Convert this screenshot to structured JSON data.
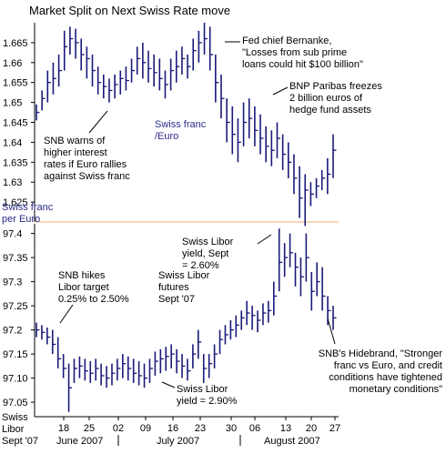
{
  "chart_data": [
    {
      "type": "ohlc",
      "title": "Market Split on Next Swiss Rate move",
      "ylabel_lines": [
        "Swiss franc",
        "per Euro"
      ],
      "ylim": [
        1.62,
        1.67
      ],
      "yticks": [
        1.625,
        1.63,
        1.635,
        1.64,
        1.645,
        1.65,
        1.655,
        1.66,
        1.665
      ],
      "ytick_labels": [
        "1.625",
        "1.63",
        "1.635",
        "1.64",
        "1.645",
        "1.65",
        "1.655",
        "1.66",
        "1.665"
      ],
      "series_label_lines": [
        "Swiss franc",
        "/Euro"
      ],
      "bars": [
        {
          "h": 1.6495,
          "l": 1.6455,
          "c": 1.6475
        },
        {
          "h": 1.653,
          "l": 1.648,
          "c": 1.651
        },
        {
          "h": 1.658,
          "l": 1.65,
          "c": 1.655
        },
        {
          "h": 1.66,
          "l": 1.652,
          "c": 1.656
        },
        {
          "h": 1.662,
          "l": 1.654,
          "c": 1.658
        },
        {
          "h": 1.668,
          "l": 1.658,
          "c": 1.664
        },
        {
          "h": 1.669,
          "l": 1.662,
          "c": 1.666
        },
        {
          "h": 1.6685,
          "l": 1.661,
          "c": 1.665
        },
        {
          "h": 1.666,
          "l": 1.658,
          "c": 1.662
        },
        {
          "h": 1.664,
          "l": 1.656,
          "c": 1.661
        },
        {
          "h": 1.662,
          "l": 1.654,
          "c": 1.658
        },
        {
          "h": 1.659,
          "l": 1.652,
          "c": 1.655
        },
        {
          "h": 1.657,
          "l": 1.651,
          "c": 1.654
        },
        {
          "h": 1.656,
          "l": 1.65,
          "c": 1.653
        },
        {
          "h": 1.657,
          "l": 1.651,
          "c": 1.6545
        },
        {
          "h": 1.658,
          "l": 1.652,
          "c": 1.656
        },
        {
          "h": 1.659,
          "l": 1.653,
          "c": 1.6555
        },
        {
          "h": 1.661,
          "l": 1.655,
          "c": 1.658
        },
        {
          "h": 1.664,
          "l": 1.657,
          "c": 1.661
        },
        {
          "h": 1.665,
          "l": 1.656,
          "c": 1.66
        },
        {
          "h": 1.663,
          "l": 1.655,
          "c": 1.6585
        },
        {
          "h": 1.662,
          "l": 1.654,
          "c": 1.6575
        },
        {
          "h": 1.661,
          "l": 1.653,
          "c": 1.656
        },
        {
          "h": 1.658,
          "l": 1.651,
          "c": 1.6545
        },
        {
          "h": 1.661,
          "l": 1.653,
          "c": 1.658
        },
        {
          "h": 1.663,
          "l": 1.655,
          "c": 1.659
        },
        {
          "h": 1.664,
          "l": 1.657,
          "c": 1.661
        },
        {
          "h": 1.662,
          "l": 1.656,
          "c": 1.659
        },
        {
          "h": 1.666,
          "l": 1.658,
          "c": 1.663
        },
        {
          "h": 1.668,
          "l": 1.66,
          "c": 1.665
        },
        {
          "h": 1.67,
          "l": 1.662,
          "c": 1.666
        },
        {
          "h": 1.669,
          "l": 1.658,
          "c": 1.662
        },
        {
          "h": 1.662,
          "l": 1.65,
          "c": 1.655
        },
        {
          "h": 1.657,
          "l": 1.646,
          "c": 1.651
        },
        {
          "h": 1.651,
          "l": 1.64,
          "c": 1.645
        },
        {
          "h": 1.649,
          "l": 1.637,
          "c": 1.642
        },
        {
          "h": 1.646,
          "l": 1.635,
          "c": 1.64
        },
        {
          "h": 1.65,
          "l": 1.639,
          "c": 1.645
        },
        {
          "h": 1.651,
          "l": 1.641,
          "c": 1.646
        },
        {
          "h": 1.649,
          "l": 1.639,
          "c": 1.643
        },
        {
          "h": 1.647,
          "l": 1.637,
          "c": 1.641
        },
        {
          "h": 1.644,
          "l": 1.635,
          "c": 1.639
        },
        {
          "h": 1.643,
          "l": 1.634,
          "c": 1.638
        },
        {
          "h": 1.645,
          "l": 1.636,
          "c": 1.641
        },
        {
          "h": 1.642,
          "l": 1.633,
          "c": 1.637
        },
        {
          "h": 1.64,
          "l": 1.631,
          "c": 1.635
        },
        {
          "h": 1.637,
          "l": 1.627,
          "c": 1.631
        },
        {
          "h": 1.634,
          "l": 1.621,
          "c": 1.626
        },
        {
          "h": 1.632,
          "l": 1.619,
          "c": 1.628
        },
        {
          "h": 1.63,
          "l": 1.624,
          "c": 1.627
        },
        {
          "h": 1.631,
          "l": 1.626,
          "c": 1.629
        },
        {
          "h": 1.633,
          "l": 1.628,
          "c": 1.631
        },
        {
          "h": 1.636,
          "l": 1.627,
          "c": 1.632
        },
        {
          "h": 1.642,
          "l": 1.631,
          "c": 1.638
        }
      ],
      "annotations": [
        {
          "id": "bernanke",
          "lines": [
            "Fed chief Bernanke,",
            "\"Losses from sub prime",
            "loans could hit $100 billion\""
          ]
        },
        {
          "id": "bnp",
          "lines": [
            "BNP Paribas freezes",
            "2 billion euros of",
            "hedge fund assets"
          ]
        },
        {
          "id": "snb-warns",
          "lines": [
            "SNB warns of",
            "higher interest",
            "rates if Euro rallies",
            "against Swiss franc"
          ]
        }
      ]
    },
    {
      "type": "ohlc",
      "ylim": [
        97.02,
        97.42
      ],
      "yticks": [
        97.05,
        97.1,
        97.15,
        97.2,
        97.25,
        97.3,
        97.35,
        97.4
      ],
      "ytick_labels": [
        "97.05",
        "97.10",
        "97.15",
        "97.2",
        "97.25",
        "97.3",
        "97.35",
        "97.4"
      ],
      "xlabel_lines": [
        "Swiss",
        "Libor",
        "Sept '07"
      ],
      "day_ticks": [
        "18",
        "25",
        "02",
        "09",
        "16",
        "23",
        "30",
        "06",
        "13",
        "20",
        "27"
      ],
      "month_labels": [
        "June 2007",
        "July 2007",
        "August 2007"
      ],
      "series_label_lines": [
        "Swiss Libor",
        "futures",
        "Sept '07"
      ],
      "bars": [
        {
          "h": 97.215,
          "l": 97.185,
          "c": 97.2
        },
        {
          "h": 97.21,
          "l": 97.18,
          "c": 97.195
        },
        {
          "h": 97.205,
          "l": 97.17,
          "c": 97.185
        },
        {
          "h": 97.2,
          "l": 97.15,
          "c": 97.17
        },
        {
          "h": 97.185,
          "l": 97.12,
          "c": 97.14
        },
        {
          "h": 97.15,
          "l": 97.1,
          "c": 97.12
        },
        {
          "h": 97.13,
          "l": 97.03,
          "c": 97.08
        },
        {
          "h": 97.14,
          "l": 97.09,
          "c": 97.12
        },
        {
          "h": 97.145,
          "l": 97.1,
          "c": 97.125
        },
        {
          "h": 97.14,
          "l": 97.095,
          "c": 97.115
        },
        {
          "h": 97.135,
          "l": 97.09,
          "c": 97.11
        },
        {
          "h": 97.14,
          "l": 97.095,
          "c": 97.12
        },
        {
          "h": 97.13,
          "l": 97.085,
          "c": 97.105
        },
        {
          "h": 97.125,
          "l": 97.08,
          "c": 97.1
        },
        {
          "h": 97.13,
          "l": 97.085,
          "c": 97.11
        },
        {
          "h": 97.14,
          "l": 97.095,
          "c": 97.12
        },
        {
          "h": 97.15,
          "l": 97.1,
          "c": 97.13
        },
        {
          "h": 97.145,
          "l": 97.095,
          "c": 97.12
        },
        {
          "h": 97.14,
          "l": 97.09,
          "c": 97.11
        },
        {
          "h": 97.135,
          "l": 97.085,
          "c": 97.105
        },
        {
          "h": 97.13,
          "l": 97.08,
          "c": 97.1
        },
        {
          "h": 97.14,
          "l": 97.09,
          "c": 97.12
        },
        {
          "h": 97.155,
          "l": 97.105,
          "c": 97.135
        },
        {
          "h": 97.16,
          "l": 97.11,
          "c": 97.14
        },
        {
          "h": 97.165,
          "l": 97.115,
          "c": 97.145
        },
        {
          "h": 97.17,
          "l": 97.12,
          "c": 97.15
        },
        {
          "h": 97.16,
          "l": 97.11,
          "c": 97.135
        },
        {
          "h": 97.15,
          "l": 97.1,
          "c": 97.125
        },
        {
          "h": 97.14,
          "l": 97.095,
          "c": 97.115
        },
        {
          "h": 97.17,
          "l": 97.12,
          "c": 97.15
        },
        {
          "h": 97.2,
          "l": 97.14,
          "c": 97.175
        },
        {
          "h": 97.15,
          "l": 97.09,
          "c": 97.12
        },
        {
          "h": 97.15,
          "l": 97.1,
          "c": 97.13
        },
        {
          "h": 97.17,
          "l": 97.12,
          "c": 97.15
        },
        {
          "h": 97.2,
          "l": 97.15,
          "c": 97.18
        },
        {
          "h": 97.21,
          "l": 97.17,
          "c": 97.19
        },
        {
          "h": 97.22,
          "l": 97.18,
          "c": 97.2
        },
        {
          "h": 97.23,
          "l": 97.185,
          "c": 97.21
        },
        {
          "h": 97.24,
          "l": 97.2,
          "c": 97.225
        },
        {
          "h": 97.26,
          "l": 97.21,
          "c": 97.235
        },
        {
          "h": 97.25,
          "l": 97.2,
          "c": 97.23
        },
        {
          "h": 97.24,
          "l": 97.195,
          "c": 97.22
        },
        {
          "h": 97.255,
          "l": 97.21,
          "c": 97.235
        },
        {
          "h": 97.26,
          "l": 97.215,
          "c": 97.24
        },
        {
          "h": 97.3,
          "l": 97.23,
          "c": 97.27
        },
        {
          "h": 97.41,
          "l": 97.28,
          "c": 97.34
        },
        {
          "h": 97.38,
          "l": 97.31,
          "c": 97.35
        },
        {
          "h": 97.4,
          "l": 97.33,
          "c": 97.36
        },
        {
          "h": 97.36,
          "l": 97.29,
          "c": 97.33
        },
        {
          "h": 97.35,
          "l": 97.27,
          "c": 97.31
        },
        {
          "h": 97.4,
          "l": 97.3,
          "c": 97.35
        },
        {
          "h": 97.32,
          "l": 97.24,
          "c": 97.28
        },
        {
          "h": 97.34,
          "l": 97.27,
          "c": 97.3
        },
        {
          "h": 97.33,
          "l": 97.24,
          "c": 97.27
        },
        {
          "h": 97.27,
          "l": 97.21,
          "c": 97.24
        },
        {
          "h": 97.25,
          "l": 97.2,
          "c": 97.225
        }
      ],
      "annotations": [
        {
          "id": "swiss-libor-260",
          "lines": [
            "Swiss Libor",
            "yield, Sept",
            "= 2.60%"
          ]
        },
        {
          "id": "snb-hikes",
          "lines": [
            "SNB hikes",
            "Libor target",
            "0.25% to 2.50%"
          ]
        },
        {
          "id": "swiss-libor-290",
          "lines": [
            "Swiss Libor",
            "yield = 2.90%"
          ]
        },
        {
          "id": "hildebrand",
          "lines": [
            "SNB's Hidebrand, \"Stronger",
            "franc vs Euro, and credit",
            "conditions have tightened",
            "monetary conditions\""
          ]
        }
      ]
    }
  ],
  "colors": {
    "bars": "#1a1a7a",
    "divider": "#f0c090",
    "text": "#000000",
    "series_text": "#2a2a8a",
    "axis": "#000000"
  }
}
